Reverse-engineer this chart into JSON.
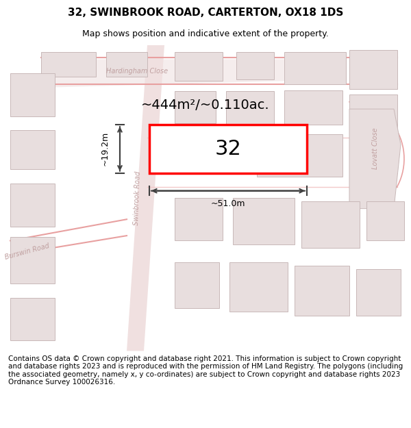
{
  "title": "32, SWINBROOK ROAD, CARTERTON, OX18 1DS",
  "subtitle": "Map shows position and indicative extent of the property.",
  "area_label": "~444m²/~0.110ac.",
  "width_label": "~51.0m",
  "height_label": "~19.2m",
  "number_label": "32",
  "footer": "Contains OS data © Crown copyright and database right 2021. This information is subject to Crown copyright and database rights 2023 and is reproduced with the permission of HM Land Registry. The polygons (including the associated geometry, namely x, y co-ordinates) are subject to Crown copyright and database rights 2023 Ordnance Survey 100026316.",
  "bg_color": "#f5f0f0",
  "map_bg": "#ffffff",
  "road_color_main": "#e8a0a0",
  "road_color_light": "#f0c0c0",
  "building_fill": "#e8e0e0",
  "building_stroke": "#c8b8b8",
  "highlight_fill": "#ffffff",
  "highlight_stroke": "#ff0000",
  "title_fontsize": 11,
  "subtitle_fontsize": 9,
  "footer_fontsize": 7.5,
  "label_fontsize": 14,
  "number_fontsize": 22,
  "measurement_fontsize": 9
}
